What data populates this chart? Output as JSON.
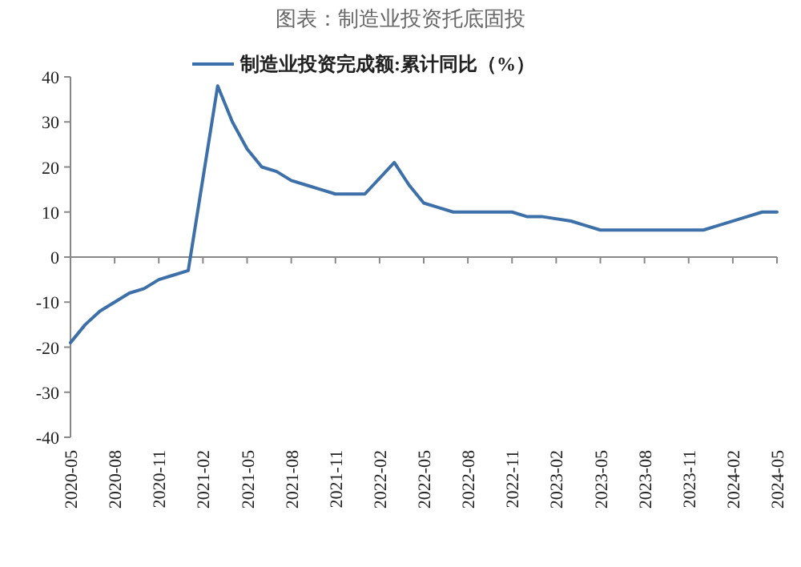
{
  "chart_data": {
    "type": "line",
    "title": "图表：制造业投资托底固投",
    "series": [
      {
        "name": "制造业投资完成额:累计同比（%）",
        "color": "#3d6fa8",
        "x": [
          "2020-05",
          "2020-06",
          "2020-07",
          "2020-08",
          "2020-09",
          "2020-10",
          "2020-11",
          "2020-12",
          "2021-01",
          "2021-03",
          "2021-04",
          "2021-05",
          "2021-06",
          "2021-07",
          "2021-08",
          "2021-09",
          "2021-10",
          "2021-11",
          "2021-12",
          "2022-01",
          "2022-03",
          "2022-04",
          "2022-05",
          "2022-06",
          "2022-07",
          "2022-08",
          "2022-09",
          "2022-10",
          "2022-11",
          "2022-12",
          "2023-01",
          "2023-03",
          "2023-04",
          "2023-05",
          "2023-06",
          "2023-07",
          "2023-08",
          "2023-09",
          "2023-10",
          "2023-11",
          "2023-12",
          "2024-01",
          "2024-03",
          "2024-04",
          "2024-05"
        ],
        "values": [
          -19,
          -15,
          -12,
          -10,
          -8,
          -7,
          -5,
          -4,
          -3,
          38,
          30,
          24,
          20,
          19,
          17,
          16,
          15,
          14,
          14,
          14,
          21,
          16,
          12,
          11,
          10,
          10,
          10,
          10,
          10,
          9,
          9,
          8,
          7,
          6,
          6,
          6,
          6,
          6,
          6,
          6,
          6,
          7,
          9,
          10,
          10
        ]
      }
    ],
    "xlim": [
      "2020-05",
      "2024-05"
    ],
    "xticks": [
      "2020-05",
      "2020-08",
      "2020-11",
      "2021-02",
      "2021-05",
      "2021-08",
      "2021-11",
      "2022-02",
      "2022-05",
      "2022-08",
      "2022-11",
      "2023-02",
      "2023-05",
      "2023-08",
      "2023-11",
      "2024-02",
      "2024-05"
    ],
    "ylim": [
      -40,
      40
    ],
    "yticks": [
      -40,
      -30,
      -20,
      -10,
      0,
      10,
      20,
      30,
      40
    ],
    "legend": "top"
  }
}
